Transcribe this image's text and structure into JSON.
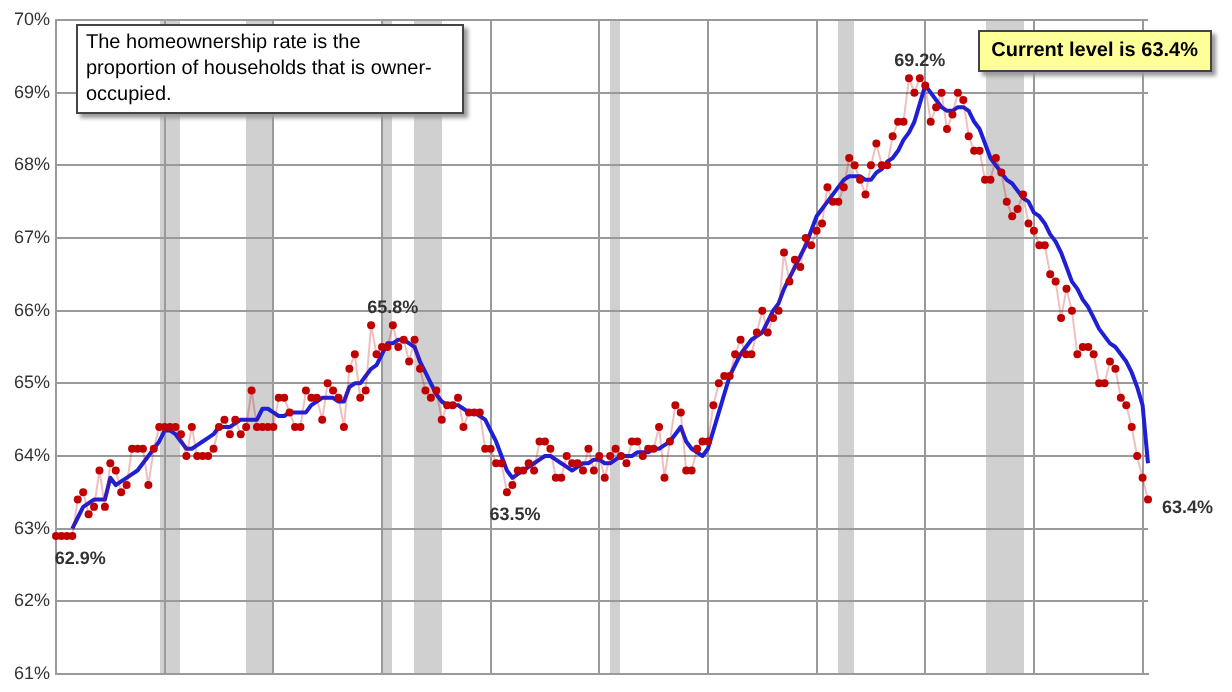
{
  "chart_data": {
    "type": "line",
    "categories": [
      null,
      null,
      null,
      null,
      null,
      null,
      null,
      null,
      null,
      null,
      null,
      null,
      null,
      null,
      null,
      null,
      null,
      null,
      null,
      null,
      null,
      null,
      null,
      null,
      null,
      null,
      null,
      null,
      null,
      null,
      null,
      null,
      null,
      null,
      null,
      null,
      null,
      null,
      null,
      null,
      null,
      null,
      null,
      null,
      null,
      null,
      null,
      null,
      null,
      null,
      null,
      null,
      null,
      null,
      null,
      null,
      null,
      null,
      null,
      null,
      null,
      null,
      null,
      null,
      null,
      null,
      null,
      null,
      null,
      null,
      null,
      null,
      null,
      null,
      null,
      null,
      null,
      null,
      null,
      null,
      null,
      null,
      null,
      null,
      null,
      null,
      null,
      null,
      null,
      null,
      null,
      null,
      null,
      null,
      null,
      null,
      null,
      null,
      null,
      null,
      null,
      null,
      null,
      null,
      null,
      null,
      null,
      null,
      null,
      null,
      null,
      null,
      null,
      null,
      null,
      null,
      null,
      null,
      null,
      null,
      null,
      null,
      null,
      null,
      null,
      null,
      null,
      null,
      null,
      null,
      null,
      null,
      null,
      null,
      null,
      null,
      null,
      null,
      null,
      null,
      null,
      null,
      null,
      null,
      null,
      null,
      null,
      null,
      null,
      null,
      null,
      null,
      null,
      null,
      null,
      null,
      null,
      null,
      null,
      null,
      null,
      null,
      null,
      null,
      null,
      null,
      null,
      null,
      null,
      null,
      null,
      null,
      null,
      null,
      null,
      null,
      null,
      null,
      null,
      null,
      null,
      null,
      null,
      null,
      null,
      null,
      null,
      null,
      null,
      null,
      null,
      null,
      null,
      null,
      null,
      null,
      null,
      null,
      null,
      null,
      null,
      null
    ],
    "ylim": [
      61,
      70
    ],
    "yticks": [
      {
        "value": 61,
        "label": "61%"
      },
      {
        "value": 62,
        "label": "62%"
      },
      {
        "value": 63,
        "label": "63%"
      },
      {
        "value": 64,
        "label": "64%"
      },
      {
        "value": 65,
        "label": "65%"
      },
      {
        "value": 66,
        "label": "66%"
      },
      {
        "value": 67,
        "label": "67%"
      },
      {
        "value": 68,
        "label": "68%"
      },
      {
        "value": 69,
        "label": "69%"
      },
      {
        "value": 70,
        "label": "70%"
      }
    ],
    "tick_labels": "y",
    "grid": true,
    "series": [
      {
        "marker": "circle",
        "color": "#c00000",
        "values": [
          62.9,
          62.9,
          62.9,
          62.9,
          63.4,
          63.5,
          63.2,
          63.3,
          63.8,
          63.3,
          63.9,
          63.8,
          63.5,
          63.6,
          64.1,
          64.1,
          64.1,
          63.6,
          64.1,
          64.4,
          64.4,
          64.4,
          64.4,
          64.3,
          64.0,
          64.4,
          64.0,
          64.0,
          64.0,
          64.1,
          64.4,
          64.5,
          64.3,
          64.5,
          64.3,
          64.4,
          64.9,
          64.4,
          64.4,
          64.4,
          64.4,
          64.8,
          64.8,
          64.6,
          64.4,
          64.4,
          64.9,
          64.8,
          64.8,
          64.5,
          65.0,
          64.9,
          64.8,
          64.4,
          65.2,
          65.4,
          64.8,
          64.9,
          65.8,
          65.4,
          65.5,
          65.5,
          65.8,
          65.5,
          65.6,
          65.3,
          65.6,
          65.2,
          64.9,
          64.8,
          64.9,
          64.5,
          64.7,
          64.7,
          64.8,
          64.4,
          64.6,
          64.6,
          64.6,
          64.1,
          64.1,
          63.9,
          63.9,
          63.5,
          63.6,
          63.8,
          63.8,
          63.9,
          63.8,
          64.2,
          64.2,
          64.1,
          63.7,
          63.7,
          64.0,
          63.9,
          63.9,
          63.8,
          64.1,
          63.8,
          64.0,
          63.7,
          64.0,
          64.1,
          64.0,
          63.9,
          64.2,
          64.2,
          64.0,
          64.1,
          64.1,
          64.4,
          63.7,
          64.2,
          64.7,
          64.6,
          63.8,
          63.8,
          64.1,
          64.2,
          64.2,
          64.7,
          65.0,
          65.1,
          65.1,
          65.4,
          65.6,
          65.4,
          65.4,
          65.7,
          66.0,
          65.7,
          65.9,
          66.0,
          66.8,
          66.4,
          66.7,
          66.6,
          67.0,
          66.9,
          67.1,
          67.2,
          67.7,
          67.5,
          67.5,
          67.7,
          68.1,
          68.0,
          67.8,
          67.6,
          68.0,
          68.3,
          68.0,
          68.0,
          68.4,
          68.6,
          68.6,
          69.2,
          69.0,
          69.2,
          69.1,
          68.6,
          68.8,
          69.0,
          68.5,
          68.7,
          69.0,
          68.9,
          68.4,
          68.2,
          68.2,
          67.8,
          67.8,
          68.1,
          67.9,
          67.5,
          67.3,
          67.4,
          67.6,
          67.2,
          67.1,
          66.9,
          66.9,
          66.5,
          66.4,
          65.9,
          66.3,
          66.0,
          65.4,
          65.5,
          65.5,
          65.4,
          65.0,
          65.0,
          65.3,
          65.2,
          64.8,
          64.7,
          64.4,
          64.0,
          63.7,
          63.4
        ]
      },
      {
        "marker": "none",
        "line_style": "solid",
        "color": "#1f1fd6",
        "values": [
          null,
          null,
          null,
          63.0,
          63.15,
          63.3,
          63.35,
          63.4,
          63.4,
          63.4,
          63.7,
          63.6,
          63.65,
          63.7,
          63.75,
          63.8,
          63.9,
          64.0,
          64.1,
          64.2,
          64.35,
          64.35,
          64.3,
          64.2,
          64.1,
          64.1,
          64.15,
          64.2,
          64.25,
          64.3,
          64.4,
          64.4,
          64.4,
          64.45,
          64.5,
          64.5,
          64.5,
          64.5,
          64.65,
          64.65,
          64.6,
          64.55,
          64.55,
          64.6,
          64.6,
          64.6,
          64.6,
          64.7,
          64.75,
          64.8,
          64.8,
          64.8,
          64.75,
          64.75,
          64.95,
          65.0,
          65.0,
          65.1,
          65.2,
          65.25,
          65.4,
          65.55,
          65.55,
          65.6,
          65.6,
          65.55,
          65.5,
          65.3,
          65.15,
          65.0,
          64.85,
          64.75,
          64.7,
          64.7,
          64.7,
          64.65,
          64.6,
          64.6,
          64.55,
          64.5,
          64.35,
          64.2,
          64.0,
          63.8,
          63.7,
          63.75,
          63.8,
          63.85,
          63.9,
          63.95,
          64.0,
          64.0,
          63.95,
          63.9,
          63.85,
          63.8,
          63.85,
          63.9,
          63.9,
          63.95,
          63.95,
          63.9,
          63.9,
          63.95,
          64.0,
          64.0,
          64.0,
          64.05,
          64.05,
          64.05,
          64.1,
          64.1,
          64.15,
          64.2,
          64.3,
          64.4,
          64.2,
          64.1,
          64.05,
          64.0,
          64.1,
          64.35,
          64.6,
          64.85,
          65.1,
          65.25,
          65.4,
          65.5,
          65.6,
          65.65,
          65.7,
          65.85,
          66.0,
          66.1,
          66.3,
          66.45,
          66.6,
          66.75,
          66.9,
          67.1,
          67.3,
          67.4,
          67.5,
          67.6,
          67.7,
          67.8,
          67.85,
          67.85,
          67.85,
          67.8,
          67.8,
          67.9,
          67.95,
          68.05,
          68.1,
          68.2,
          68.35,
          68.45,
          68.6,
          68.85,
          69.1,
          69.0,
          68.9,
          68.8,
          68.75,
          68.75,
          68.8,
          68.8,
          68.75,
          68.6,
          68.5,
          68.3,
          68.1,
          68.0,
          67.9,
          67.8,
          67.75,
          67.65,
          67.55,
          67.5,
          67.35,
          67.3,
          67.2,
          67.05,
          66.95,
          66.8,
          66.6,
          66.4,
          66.3,
          66.15,
          66.05,
          65.9,
          65.75,
          65.65,
          65.55,
          65.5,
          65.4,
          65.3,
          65.15,
          64.95,
          64.7,
          63.9
        ]
      }
    ],
    "annotations": [
      "The homeownership rate is the proportion of households that is owner-occupied.",
      "Current level is 63.4%",
      {
        "text": "62.9%",
        "y": 62.9
      },
      {
        "text": "65.8%",
        "y": 65.8
      },
      {
        "text": "63.5%",
        "y": 63.5
      },
      {
        "text": "69.2%",
        "y": 69.2
      },
      "63.4%"
    ]
  }
}
